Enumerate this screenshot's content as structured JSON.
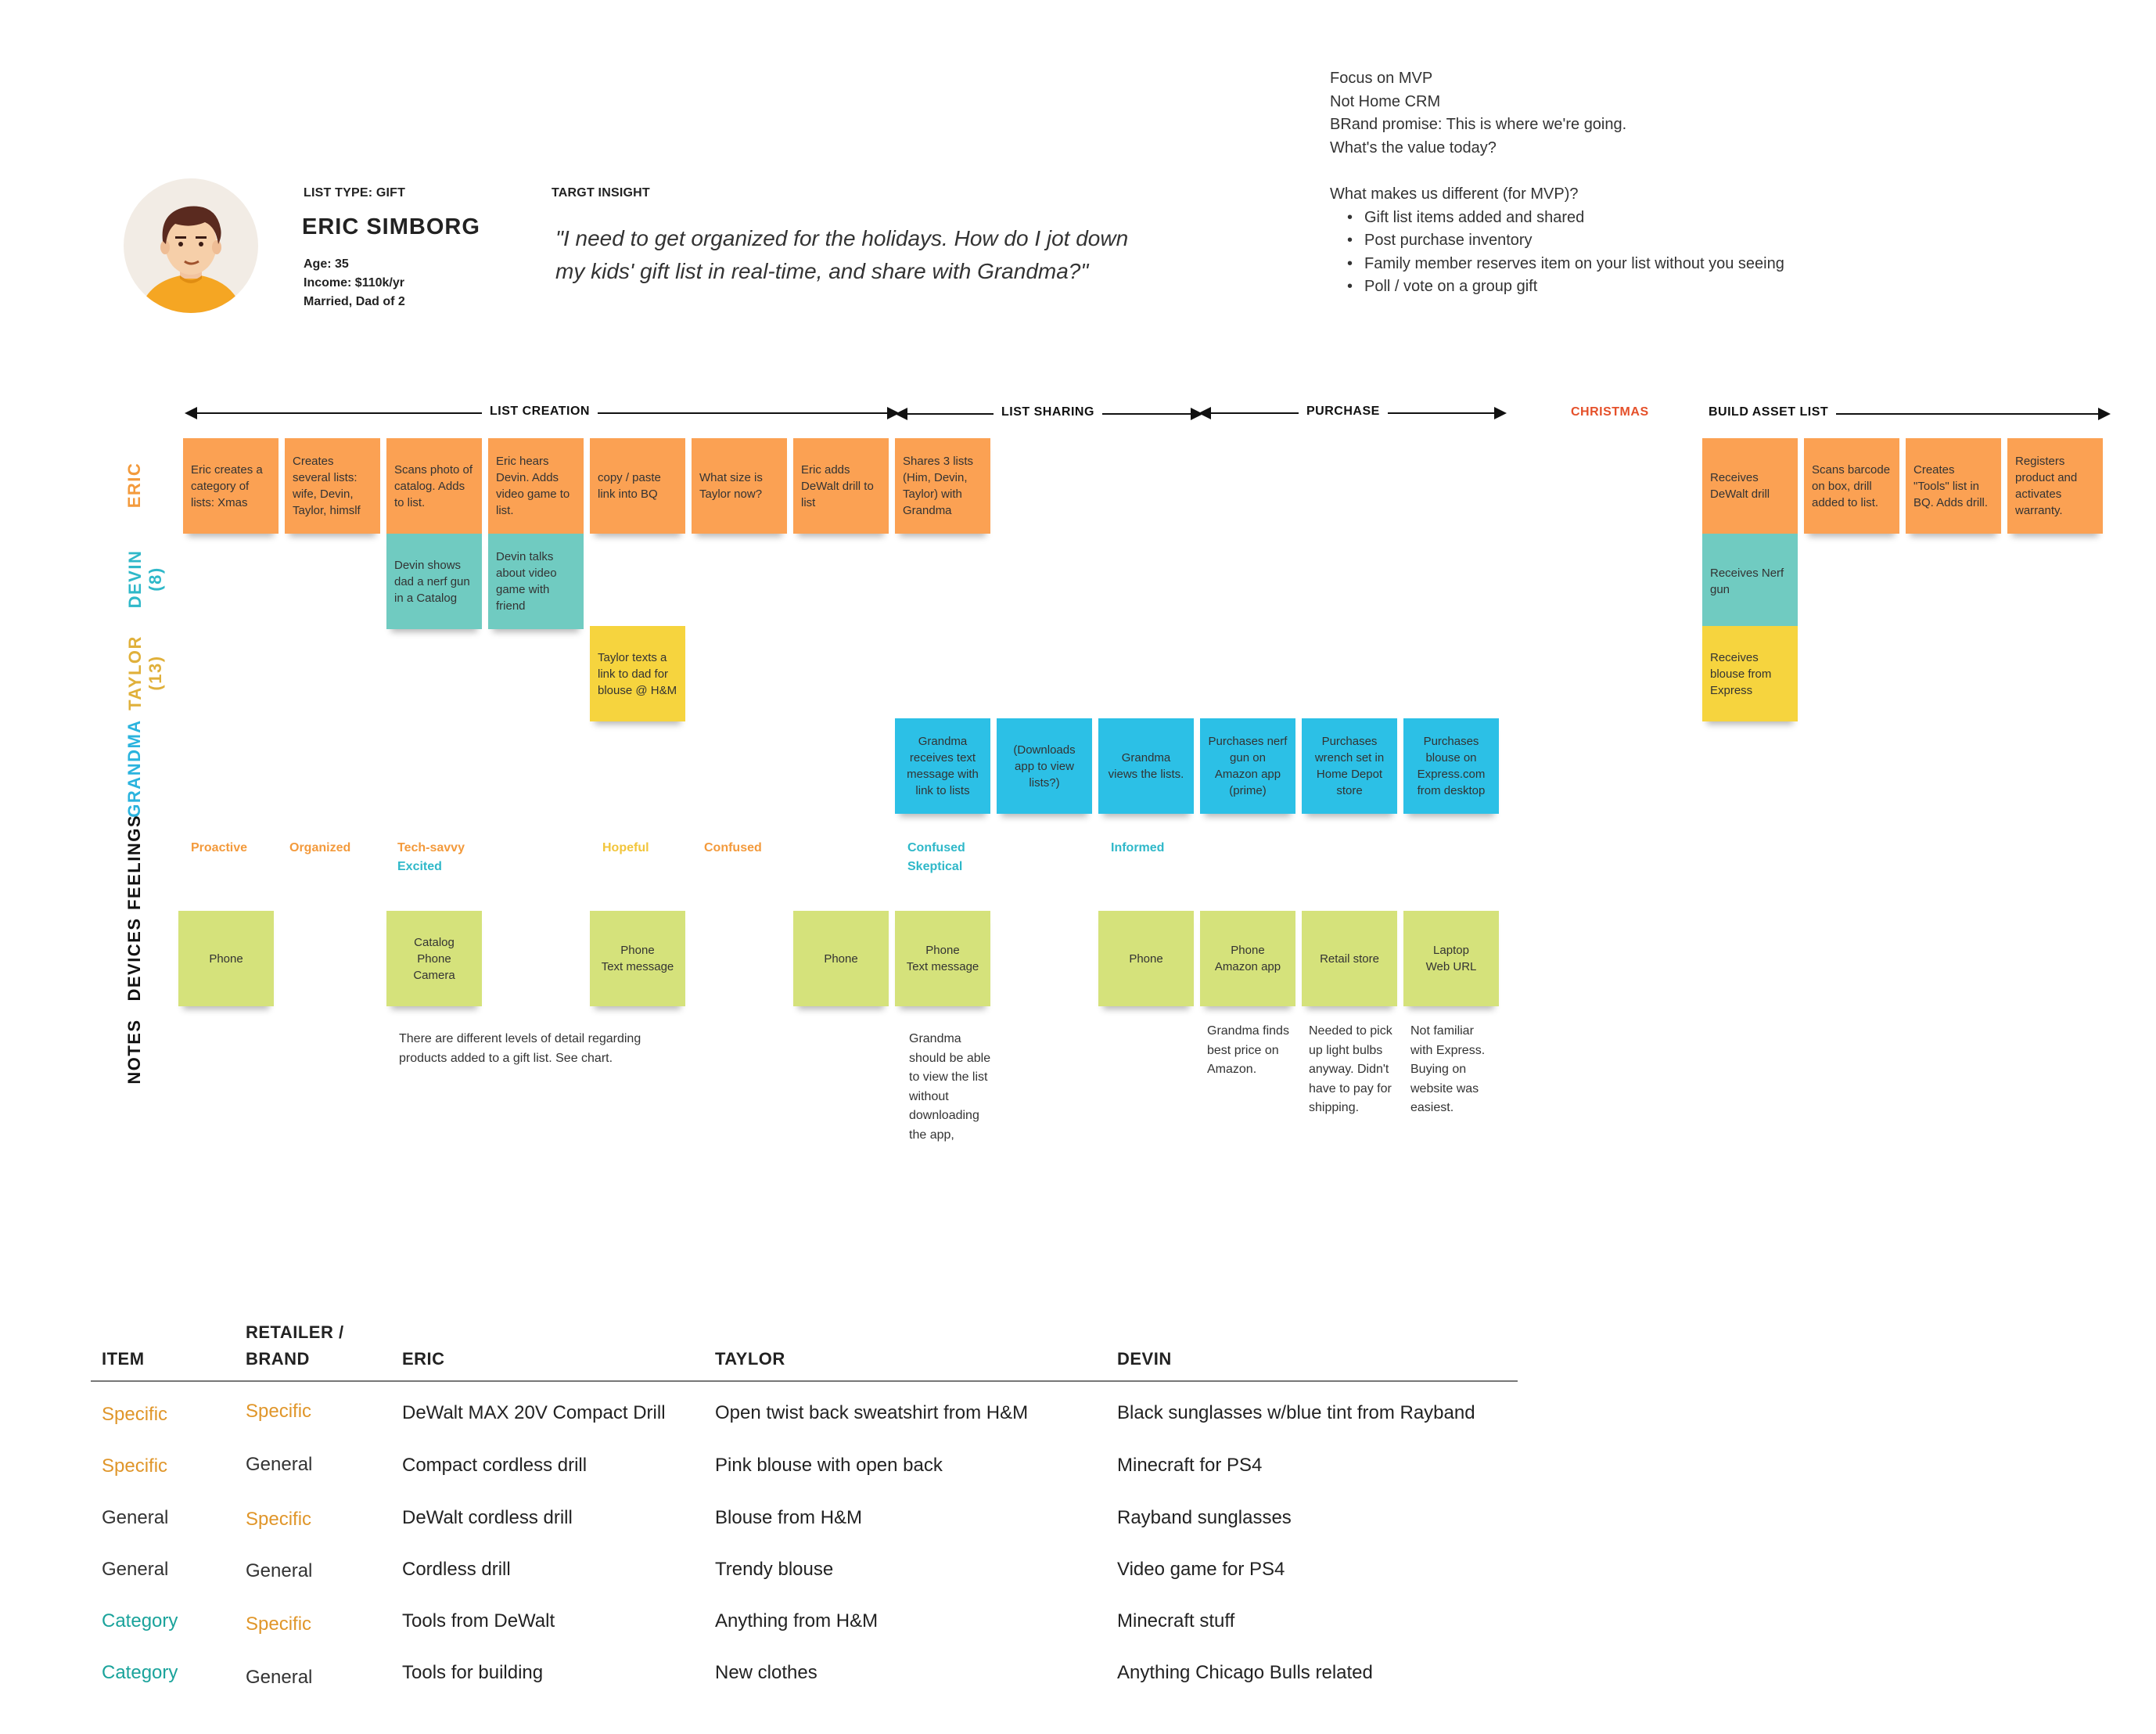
{
  "persona": {
    "list_type": "LIST TYPE: GIFT",
    "name": "ERIC SIMBORG",
    "age": "Age: 35",
    "income": "Income: $110k/yr",
    "family": "Married, Dad of 2",
    "insight_label": "TARGT INSIGHT",
    "quote_line1": "\"I need to get organized for the holidays. How do I jot down",
    "quote_line2": "my kids' gift list in real-time, and share with Grandma?\""
  },
  "mvp_notes": {
    "lines": [
      "Focus on MVP",
      "Not Home CRM",
      "BRand promise: This is where we're going.",
      "What's the value today?"
    ],
    "question": "What makes us different (for MVP)?",
    "bullets": [
      "Gift list items added and shared",
      "Post purchase inventory",
      "Family member reserves item on your list without you seeing",
      "Poll / vote on a group gift"
    ]
  },
  "phases": {
    "list_creation": "LIST CREATION",
    "list_sharing": "LIST SHARING",
    "purchase": "PURCHASE",
    "christmas": "CHRISTMAS",
    "build_asset_list": "BUILD ASSET LIST"
  },
  "row_labels": {
    "eric": "ERIC",
    "devin_1": "DEVIN",
    "devin_2": "(8)",
    "taylor_1": "TAYLOR",
    "taylor_2": "(13)",
    "grandma": "GRANDMA",
    "feelings": "FEELINGS",
    "devices": "DEVICES",
    "notes": "NOTES"
  },
  "colors": {
    "eric": "#f39a3c",
    "devin": "#2fb8c9",
    "taylor": "#e0b03a",
    "grandma": "#2ab3de",
    "christmas": "#e5502a"
  },
  "stickies": {
    "eric": [
      "Eric creates a category of lists: Xmas",
      "Creates several lists: wife, Devin, Taylor, himslf",
      "Scans photo of catalog. Adds to list.",
      "Eric hears Devin. Adds video game to list.",
      "copy / paste link into BQ",
      "What size is Taylor now?",
      "Eric adds DeWalt  drill to list",
      "Shares 3 lists (Him, Devin, Taylor) with Grandma",
      "Receives DeWalt drill",
      "Scans barcode on box, drill added to list.",
      "Creates \"Tools\" list in BQ. Adds drill.",
      "Registers product and activates warranty."
    ],
    "devin": [
      "Devin shows dad a nerf gun in a Catalog",
      "Devin talks about video game with friend",
      "Receives Nerf gun"
    ],
    "taylor": [
      "Taylor texts a link to dad for blouse @ H&M",
      "Receives blouse from Express"
    ],
    "grandma": [
      "Grandma receives text message with link to lists",
      "(Downloads app to view lists?)",
      "Grandma views the lists.",
      "Purchases nerf gun on Amazon app (prime)",
      "Purchases wrench set in Home Depot store",
      "Purchases blouse on Express.com from desktop"
    ],
    "devices": [
      "Phone",
      "Catalog\nPhone\nCamera",
      "Phone\nText message",
      "Phone",
      "Phone\nText message",
      "Phone",
      "Phone\nAmazon app",
      "Retail store",
      "Laptop\nWeb URL"
    ]
  },
  "feelings": [
    "Proactive",
    "Organized",
    "Tech-savvy",
    "Excited",
    "Hopeful",
    "Confused",
    "Confused",
    "Skeptical",
    "Informed"
  ],
  "notes": [
    "There are different levels of detail regarding\nproducts added to a gift list. See chart.",
    "Grandma\nshould be able\nto view the list\nwithout\ndownloading\nthe app,",
    "Grandma finds\nbest price on\nAmazon.",
    "Needed to pick\nup light bulbs\nanyway. Didn't\nhave to pay for\nshipping.",
    "Not familiar\nwith Express.\nBuying on\nwebsite was\neasiest."
  ],
  "table": {
    "headers": [
      "ITEM",
      "RETAILER /\nBRAND",
      "ERIC",
      "TAYLOR",
      "DEVIN"
    ],
    "rows": [
      [
        "Specific",
        "Specific",
        "DeWalt MAX 20V Compact Drill",
        "Open twist back sweatshirt from H&M",
        "Black sunglasses w/blue tint from Rayband"
      ],
      [
        "Specific",
        "General",
        "Compact cordless drill",
        "Pink blouse with open back",
        "Minecraft for PS4"
      ],
      [
        "General",
        "Specific",
        "DeWalt cordless drill",
        "Blouse from H&M",
        "Rayband sunglasses"
      ],
      [
        "General",
        "General",
        "Cordless drill",
        "Trendy blouse",
        "Video game for PS4"
      ],
      [
        "Category",
        "Specific",
        "Tools from DeWalt",
        "Anything from H&M",
        "Minecraft stuff"
      ],
      [
        "Category",
        "General",
        "Tools for building",
        "New clothes",
        "Anything Chicago Bulls related"
      ]
    ]
  }
}
